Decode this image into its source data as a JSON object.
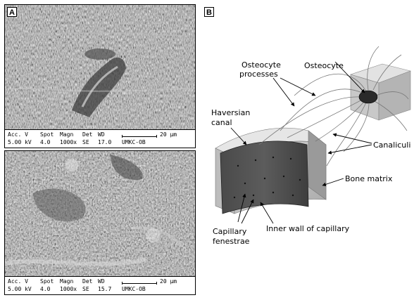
{
  "panel_a": {
    "letter": "A",
    "micrographs": [
      {
        "headers": [
          "Acc. V",
          "Spot",
          "Magn",
          "Det",
          "WD"
        ],
        "values": [
          "5.00 kV",
          "4.0",
          "1000x",
          "SE",
          "17.0",
          "UMKC-OB"
        ],
        "scale_label": "20 µm"
      },
      {
        "headers": [
          "Acc. V",
          "Spot",
          "Magn",
          "Det",
          "WD"
        ],
        "values": [
          "5.00 kV",
          "4.0",
          "1000x",
          "SE",
          "15.7",
          "UMKC-OB"
        ],
        "scale_label": "20 µm"
      }
    ]
  },
  "panel_b": {
    "letter": "B",
    "labels": {
      "osteocyte_processes_line1": "Osteocyte",
      "osteocyte_processes_line2": "processes",
      "osteocyte": "Osteocyte",
      "haversian_canal_line1": "Haversian",
      "haversian_canal_line2": "canal",
      "canaliculi": "Canaliculi",
      "bone_matrix": "Bone matrix",
      "capillary_fenestrae_line1": "Capillary",
      "capillary_fenestrae_line2": "fenestrae",
      "inner_wall": "Inner wall of capillary"
    }
  }
}
